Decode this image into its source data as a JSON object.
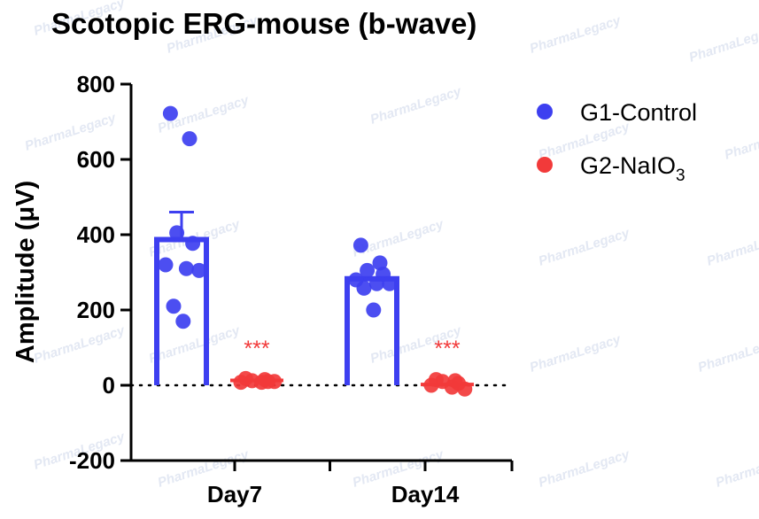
{
  "chart_data": {
    "type": "bar",
    "title": "Scotopic ERG-mouse (b-wave)",
    "ylabel": "Amplitude (μV)",
    "xlabel": "",
    "categories": [
      "Day7",
      "Day14"
    ],
    "ylim": [
      -200,
      800
    ],
    "yticks": [
      -200,
      0,
      200,
      400,
      600,
      800
    ],
    "yticks_labels": [
      "-200",
      "0",
      "200",
      "400",
      "600",
      "800"
    ],
    "legend_position": "top-right",
    "watermark": "PharmaLegacy",
    "series": [
      {
        "name": "G1-Control",
        "name_main": "G1-Control",
        "name_sub": "",
        "color": "#3d3ff0",
        "style": "open bar with points",
        "values": [
          387,
          283
        ],
        "error_sem": [
          73,
          0
        ],
        "points": [
          [
            722,
            655,
            405,
            377,
            320,
            310,
            305,
            210,
            170
          ],
          [
            372,
            325,
            305,
            295,
            280,
            270,
            270,
            258,
            200
          ]
        ]
      },
      {
        "name": "G2-NaIO3",
        "name_main": "G2-NaIO",
        "name_sub": "3",
        "color": "#f23a3a",
        "style": "points with mean line",
        "values": [
          13,
          2
        ],
        "error_sem": [
          0,
          0
        ],
        "points": [
          [
            18,
            15,
            12,
            10,
            8,
            8,
            10
          ],
          [
            15,
            12,
            10,
            5,
            0,
            -5,
            -10
          ]
        ]
      }
    ],
    "annotations": [
      {
        "text": "***",
        "category": "Day7",
        "series": "G2-NaIO3",
        "color": "#f23a3a"
      },
      {
        "text": "***",
        "category": "Day14",
        "series": "G2-NaIO3",
        "color": "#f23a3a"
      }
    ]
  }
}
